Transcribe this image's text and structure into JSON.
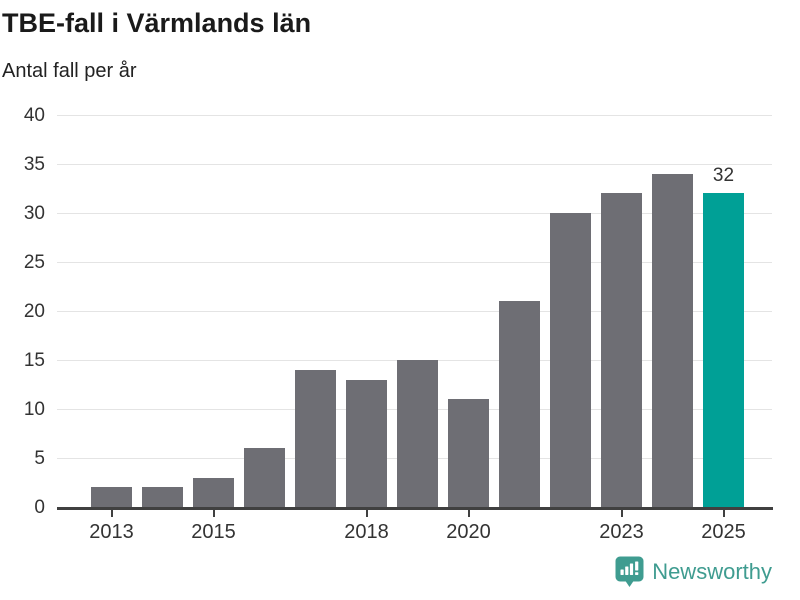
{
  "header": {
    "title": "TBE-fall i Värmlands län",
    "subtitle": "Antal fall per år"
  },
  "chart_data": {
    "type": "bar",
    "title": "TBE-fall i Värmlands län",
    "subtitle": "Antal fall per år",
    "categories": [
      2013,
      2014,
      2015,
      2016,
      2017,
      2018,
      2019,
      2020,
      2021,
      2022,
      2023,
      2024,
      2025
    ],
    "values": [
      2,
      2,
      3,
      6,
      14,
      13,
      15,
      11,
      21,
      30,
      32,
      34,
      32
    ],
    "xlabel": "",
    "ylabel": "Antal fall per år",
    "ylim": [
      0,
      40
    ],
    "yticks": [
      0,
      5,
      10,
      15,
      20,
      25,
      30,
      35,
      40
    ],
    "xticks_shown": [
      2013,
      2015,
      2018,
      2020,
      2023,
      2025
    ],
    "grid": true,
    "legend": false,
    "bar_color": "#6e6e74",
    "highlight_color": "#00a096",
    "highlight_index": 12,
    "annotation": {
      "index": 12,
      "text": "32"
    }
  },
  "footer": {
    "brand": "Newsworthy",
    "brand_color": "#3f9c90",
    "logo_icon": "newsworthy-bubble-barchart-icon"
  }
}
